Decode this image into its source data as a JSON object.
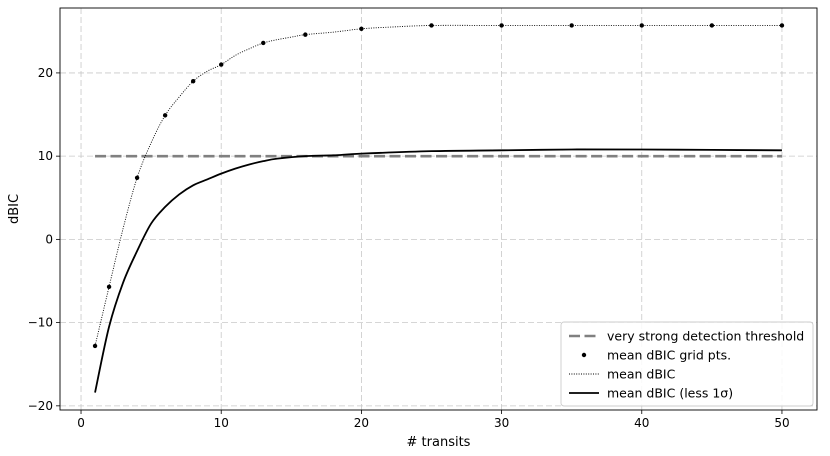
{
  "chart_data": {
    "type": "line",
    "xlabel": "# transits",
    "ylabel": "dBIC",
    "xlim": [
      -1.5,
      52.5
    ],
    "ylim": [
      -20.5,
      27.8
    ],
    "xticks": [
      0,
      10,
      20,
      30,
      40,
      50
    ],
    "yticks": [
      -20,
      -10,
      0,
      10,
      20
    ],
    "grid": true,
    "legend_position": "bottom-right",
    "series": [
      {
        "name": "very strong detection threshold",
        "style": "dashed",
        "color": "#808080",
        "x": [
          1,
          50
        ],
        "y": [
          10,
          10
        ]
      },
      {
        "name": "mean dBIC grid pts.",
        "style": "points",
        "color": "#000000",
        "x": [
          1,
          2,
          4,
          6,
          8,
          10,
          13,
          16,
          20,
          25,
          30,
          35,
          40,
          45,
          50
        ],
        "y": [
          -12.8,
          -5.7,
          7.4,
          14.9,
          19.0,
          21.0,
          23.6,
          24.6,
          25.3,
          25.7,
          25.7,
          25.7,
          25.7,
          25.7,
          25.7
        ]
      },
      {
        "name": "mean dBIC",
        "style": "dotted",
        "color": "#000000",
        "x": [
          1,
          2,
          3,
          4,
          5,
          6,
          7,
          8,
          9,
          10,
          11,
          12,
          13,
          14,
          15,
          16,
          18,
          20,
          22,
          25,
          30,
          35,
          40,
          45,
          50
        ],
        "y": [
          -12.8,
          -5.7,
          1.3,
          7.4,
          11.6,
          14.9,
          17.1,
          19.0,
          20.2,
          21.0,
          22.1,
          22.9,
          23.6,
          24.0,
          24.3,
          24.6,
          24.9,
          25.3,
          25.5,
          25.7,
          25.7,
          25.7,
          25.7,
          25.7,
          25.7
        ]
      },
      {
        "name": "mean dBIC (less 1σ)",
        "style": "solid",
        "color": "#000000",
        "x": [
          1,
          2,
          3,
          4,
          5,
          6,
          7,
          8,
          9,
          10,
          11,
          12,
          13,
          14,
          16,
          18,
          20,
          25,
          30,
          35,
          40,
          45,
          50
        ],
        "y": [
          -18.4,
          -10.5,
          -5.2,
          -1.4,
          1.9,
          3.9,
          5.4,
          6.5,
          7.2,
          7.9,
          8.5,
          9.0,
          9.4,
          9.7,
          10.0,
          10.1,
          10.3,
          10.6,
          10.7,
          10.8,
          10.8,
          10.75,
          10.7
        ]
      }
    ]
  }
}
